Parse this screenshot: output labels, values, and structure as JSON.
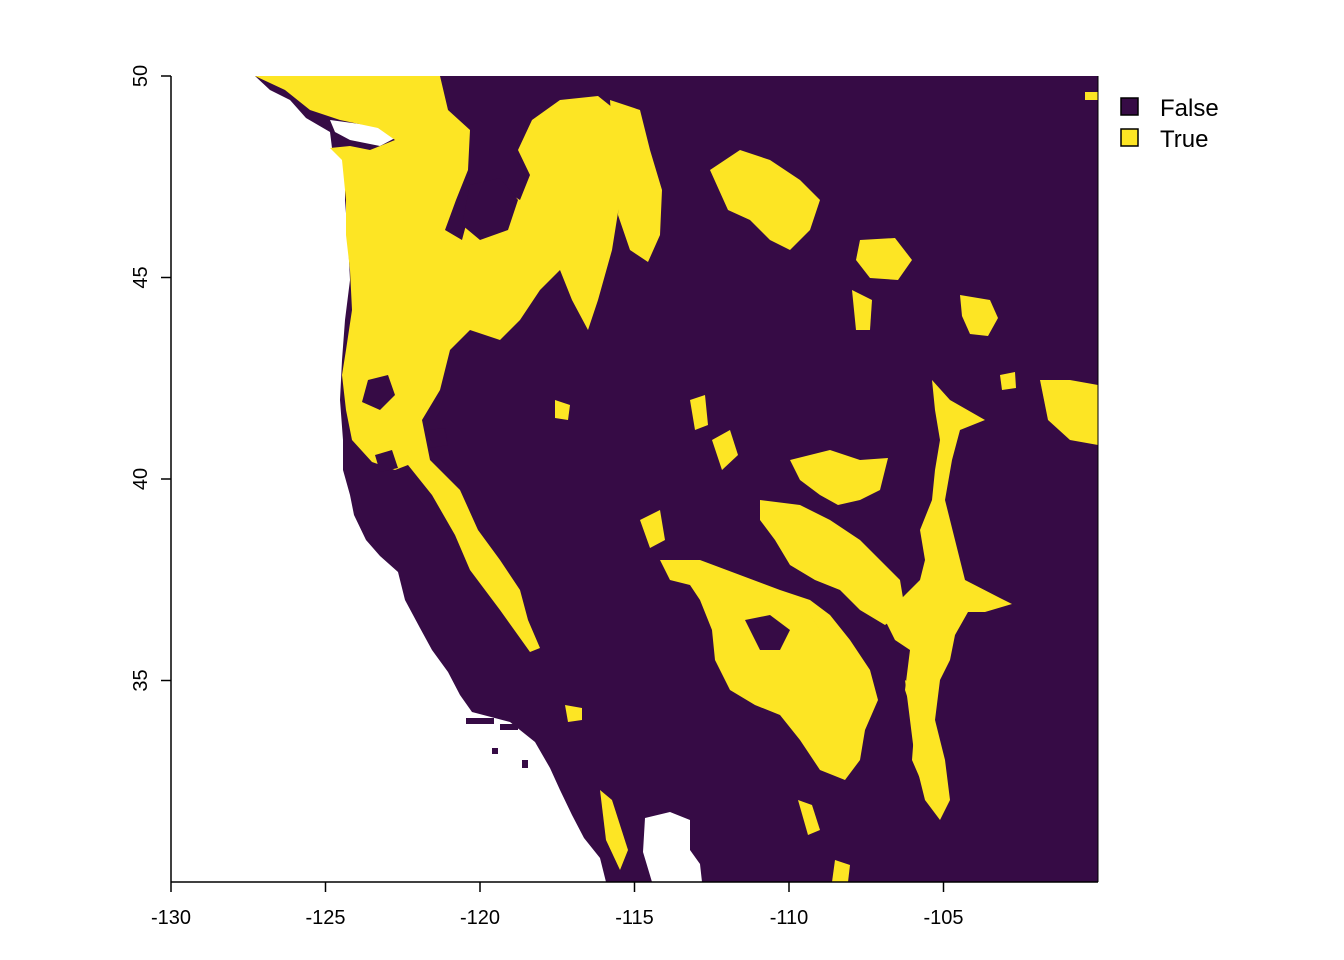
{
  "colors": {
    "false": "#360b45",
    "true": "#fde524",
    "background": "#ffffff",
    "axis": "#000000"
  },
  "legend": {
    "items": [
      {
        "label": "False",
        "color": "#360b45"
      },
      {
        "label": "True",
        "color": "#fde524"
      }
    ]
  },
  "map": {
    "type": "raster-binary",
    "x_range": [
      -130,
      -100
    ],
    "y_range": [
      30,
      50
    ],
    "x_ticks": [
      {
        "value": -130,
        "label": "-130"
      },
      {
        "value": -125,
        "label": "-125"
      },
      {
        "value": -120,
        "label": "-120"
      },
      {
        "value": -115,
        "label": "-115"
      },
      {
        "value": -110,
        "label": "-110"
      },
      {
        "value": -105,
        "label": "-105"
      }
    ],
    "y_ticks": [
      {
        "value": 50,
        "label": "50"
      },
      {
        "value": 45,
        "label": "45"
      },
      {
        "value": 40,
        "label": "40"
      },
      {
        "value": 35,
        "label": "35"
      }
    ]
  }
}
